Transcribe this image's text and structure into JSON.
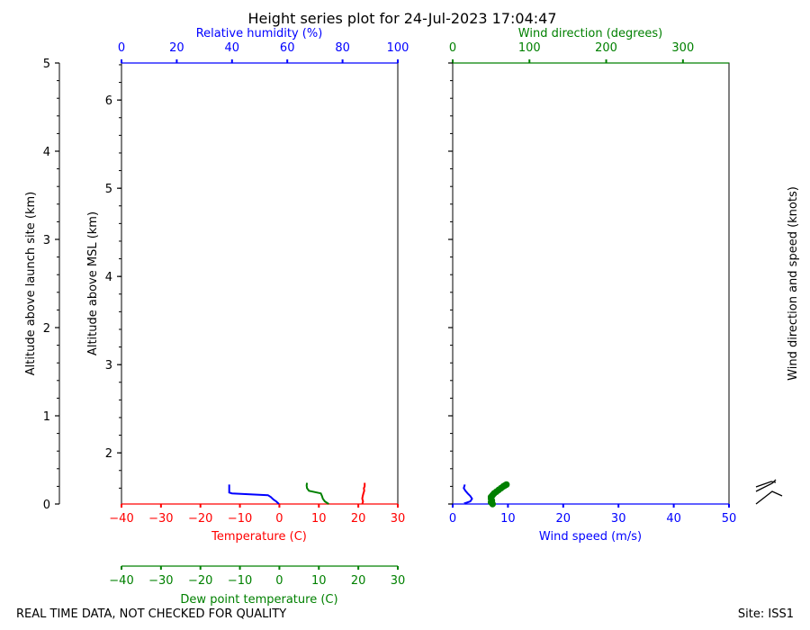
{
  "title": "Height series plot for 24-Jul-2023 17:04:47",
  "footer": {
    "left": "REAL TIME DATA, NOT CHECKED FOR QUALITY",
    "right": "Site: ISS1"
  },
  "colors": {
    "temperature": "#ff0000",
    "dewpoint": "#008000",
    "humidity": "#0000ff",
    "wind_speed": "#0000ff",
    "wind_direction": "#008000",
    "axis": "#000000"
  },
  "chart_data": [
    {
      "type": "line",
      "panel": "thermodynamic",
      "ylabel_outer": "Altitude above launch site (km)",
      "ylabel_inner": "Altitude above MSL (km)",
      "outer_ylim": [
        0,
        5
      ],
      "outer_ticks": [
        "0",
        "1",
        "2",
        "3",
        "4",
        "5"
      ],
      "inner_ylim": [
        1.42,
        6.42
      ],
      "inner_ticks": [
        "2",
        "3",
        "4",
        "5",
        "6"
      ],
      "x_temperature": {
        "label": "Temperature (C)",
        "lim": [
          -40,
          30
        ],
        "ticks": [
          "−40",
          "−30",
          "−20",
          "−10",
          "0",
          "10",
          "20",
          "30"
        ]
      },
      "x_dewpoint": {
        "label": "Dew point temperature (C)",
        "lim": [
          -40,
          30
        ],
        "ticks": [
          "−40",
          "−30",
          "−20",
          "−10",
          "0",
          "10",
          "20",
          "30"
        ]
      },
      "x_humidity": {
        "label": "Relative humidity (%)",
        "lim": [
          0,
          100
        ],
        "ticks": [
          "0",
          "20",
          "40",
          "60",
          "80",
          "100"
        ]
      },
      "series": [
        {
          "key": "temperature",
          "axis": "temperature",
          "points": [
            [
              21.0,
              0.0
            ],
            [
              21.2,
              0.03
            ],
            [
              21.0,
              0.06
            ],
            [
              21.1,
              0.09
            ],
            [
              21.3,
              0.12
            ],
            [
              21.5,
              0.15
            ],
            [
              21.4,
              0.18
            ],
            [
              21.6,
              0.2
            ],
            [
              21.6,
              0.24
            ]
          ]
        },
        {
          "key": "dewpoint",
          "axis": "dewpoint",
          "points": [
            [
              12.5,
              0.0
            ],
            [
              11.5,
              0.03
            ],
            [
              11.0,
              0.06
            ],
            [
              10.8,
              0.09
            ],
            [
              10.5,
              0.12
            ],
            [
              7.5,
              0.15
            ],
            [
              7.0,
              0.18
            ],
            [
              6.9,
              0.21
            ],
            [
              7.0,
              0.24
            ]
          ]
        },
        {
          "key": "humidity",
          "axis": "humidity",
          "points": [
            [
              57,
              0.0
            ],
            [
              56,
              0.03
            ],
            [
              55,
              0.05
            ],
            [
              54,
              0.08
            ],
            [
              53,
              0.1
            ],
            [
              40,
              0.12
            ],
            [
              39,
              0.13
            ],
            [
              39,
              0.16
            ],
            [
              39,
              0.19
            ],
            [
              39,
              0.22
            ]
          ]
        }
      ]
    },
    {
      "type": "line",
      "panel": "wind",
      "ylim": [
        0,
        5
      ],
      "x_wind_speed": {
        "label": "Wind speed (m/s)",
        "lim": [
          0,
          50
        ],
        "ticks": [
          "0",
          "10",
          "20",
          "30",
          "40",
          "50"
        ]
      },
      "x_wind_direction": {
        "label": "Wind direction (degrees)",
        "lim": [
          0,
          360
        ],
        "ticks": [
          "0",
          "100",
          "200",
          "300"
        ]
      },
      "barb_label": "Wind direction and speed (knots)",
      "series": [
        {
          "key": "wind_speed",
          "axis": "wind_speed",
          "points": [
            [
              2.5,
              0.0
            ],
            [
              2.3,
              0.01
            ],
            [
              3.2,
              0.03
            ],
            [
              3.5,
              0.06
            ],
            [
              3.2,
              0.09
            ],
            [
              2.7,
              0.12
            ],
            [
              2.3,
              0.15
            ],
            [
              2.0,
              0.18
            ],
            [
              2.2,
              0.22
            ]
          ]
        },
        {
          "key": "wind_direction",
          "axis": "wind_direction",
          "points": [
            [
              52,
              0.0
            ],
            [
              50,
              0.02
            ],
            [
              51,
              0.04
            ],
            [
              50,
              0.06
            ],
            [
              50,
              0.08
            ],
            [
              52,
              0.1
            ],
            [
              54,
              0.12
            ],
            [
              57,
              0.14
            ],
            [
              60,
              0.16
            ],
            [
              63,
              0.18
            ],
            [
              66,
              0.2
            ],
            [
              68,
              0.21
            ],
            [
              70,
              0.22
            ]
          ]
        }
      ]
    }
  ]
}
